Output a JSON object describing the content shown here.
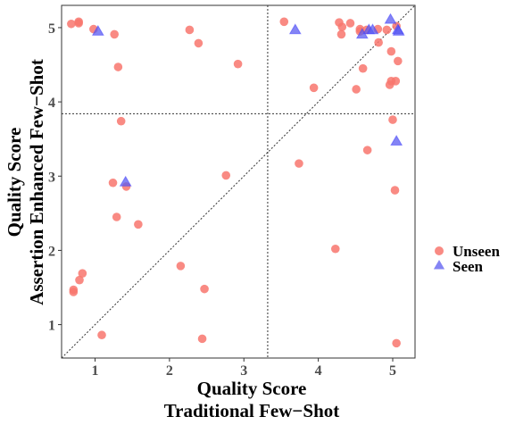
{
  "chart_data": {
    "type": "scatter",
    "xlabel": [
      "Quality Score",
      "Traditional Few−Shot"
    ],
    "ylabel": [
      "Quality Score",
      "Assertion Enhanced Few−Shot"
    ],
    "xlim": [
      0.55,
      5.3
    ],
    "ylim": [
      0.55,
      5.3
    ],
    "xticks": [
      1,
      2,
      3,
      4,
      5
    ],
    "yticks": [
      1,
      2,
      3,
      4,
      5
    ],
    "grid": false,
    "reference_lines": {
      "vertical_x": 3.32,
      "horizontal_y": 3.84,
      "diagonal": "y = x"
    },
    "legend_position": "right",
    "series": [
      {
        "name": "Unseen",
        "marker": "circle",
        "color": "#F8766D",
        "points": [
          [
            0.68,
            5.05
          ],
          [
            0.78,
            5.06
          ],
          [
            0.78,
            5.08
          ],
          [
            0.98,
            4.98
          ],
          [
            1.26,
            4.91
          ],
          [
            2.27,
            4.97
          ],
          [
            2.39,
            4.79
          ],
          [
            1.31,
            4.47
          ],
          [
            2.92,
            4.51
          ],
          [
            1.35,
            3.74
          ],
          [
            2.76,
            3.01
          ],
          [
            1.24,
            2.91
          ],
          [
            1.42,
            2.86
          ],
          [
            1.29,
            2.45
          ],
          [
            1.58,
            2.35
          ],
          [
            2.15,
            1.79
          ],
          [
            2.47,
            1.48
          ],
          [
            0.83,
            1.69
          ],
          [
            0.79,
            1.6
          ],
          [
            0.71,
            1.47
          ],
          [
            0.71,
            1.44
          ],
          [
            1.09,
            0.86
          ],
          [
            2.44,
            0.81
          ],
          [
            3.54,
            5.08
          ],
          [
            4.28,
            5.07
          ],
          [
            4.32,
            5.01
          ],
          [
            4.43,
            5.06
          ],
          [
            4.31,
            4.91
          ],
          [
            4.56,
            4.98
          ],
          [
            4.56,
            4.95
          ],
          [
            4.65,
            4.97
          ],
          [
            4.8,
            4.98
          ],
          [
            4.81,
            4.8
          ],
          [
            4.92,
            4.97
          ],
          [
            4.98,
            4.68
          ],
          [
            5.05,
            5.02
          ],
          [
            5.07,
            4.55
          ],
          [
            4.6,
            4.45
          ],
          [
            3.94,
            4.19
          ],
          [
            4.51,
            4.17
          ],
          [
            4.96,
            4.23
          ],
          [
            4.98,
            4.28
          ],
          [
            5.04,
            4.28
          ],
          [
            5.0,
            3.76
          ],
          [
            4.66,
            3.35
          ],
          [
            3.74,
            3.17
          ],
          [
            5.03,
            2.81
          ],
          [
            4.23,
            2.02
          ],
          [
            5.05,
            0.75
          ]
        ]
      },
      {
        "name": "Seen",
        "marker": "triangle",
        "color": "#619CFF",
        "points": [
          [
            1.04,
            4.94
          ],
          [
            3.69,
            4.96
          ],
          [
            4.59,
            4.9
          ],
          [
            4.68,
            4.96
          ],
          [
            4.73,
            4.96
          ],
          [
            4.97,
            5.1
          ],
          [
            5.07,
            4.96
          ],
          [
            5.08,
            4.94
          ],
          [
            5.05,
            3.46
          ],
          [
            1.41,
            2.91
          ]
        ]
      }
    ]
  }
}
